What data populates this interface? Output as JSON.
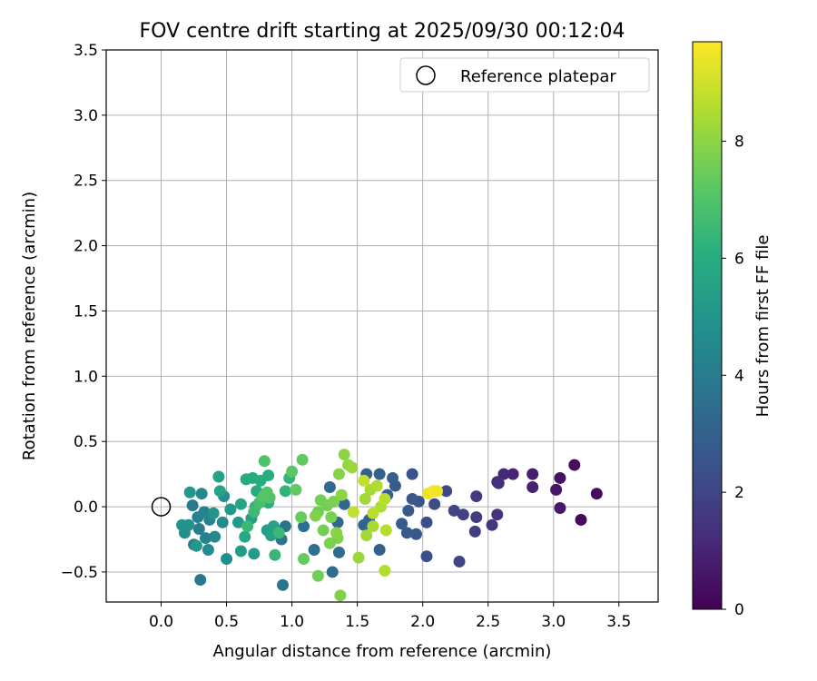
{
  "chart_data": {
    "type": "scatter",
    "title": "FOV centre drift starting at 2025/09/30 00:12:04",
    "xlabel": "Angular distance from reference (arcmin)",
    "ylabel": "Rotation from reference (arcmin)",
    "xlim": [
      -0.42,
      3.8
    ],
    "ylim": [
      -0.73,
      3.5
    ],
    "xticks": [
      0.0,
      0.5,
      1.0,
      1.5,
      2.0,
      2.5,
      3.0,
      3.5
    ],
    "xtick_labels": [
      "0.0",
      "0.5",
      "1.0",
      "1.5",
      "2.0",
      "2.5",
      "3.0",
      "3.5"
    ],
    "yticks": [
      -0.5,
      0.0,
      0.5,
      1.0,
      1.5,
      2.0,
      2.5,
      3.0,
      3.5
    ],
    "ytick_labels": [
      "−0.5",
      "0.0",
      "0.5",
      "1.0",
      "1.5",
      "2.0",
      "2.5",
      "3.0",
      "3.5"
    ],
    "grid": true,
    "legend": {
      "position": "upper-right",
      "entries": [
        "Reference platepar"
      ]
    },
    "reference_point": {
      "x": 0.0,
      "y": 0.0
    },
    "colorbar": {
      "label": "Hours from first FF file",
      "range": [
        0,
        9.7
      ],
      "ticks": [
        0,
        2,
        4,
        6,
        8
      ],
      "tick_labels": [
        "0",
        "2",
        "4",
        "6",
        "8"
      ],
      "colormap": "viridis"
    },
    "points": [
      {
        "x": 3.33,
        "y": 0.1,
        "t": 0.3
      },
      {
        "x": 3.16,
        "y": 0.32,
        "t": 0.3
      },
      {
        "x": 3.21,
        "y": -0.1,
        "t": 0.2
      },
      {
        "x": 3.05,
        "y": 0.22,
        "t": 0.5
      },
      {
        "x": 3.02,
        "y": 0.13,
        "t": 0.6
      },
      {
        "x": 3.05,
        "y": -0.01,
        "t": 0.7
      },
      {
        "x": 2.84,
        "y": 0.25,
        "t": 0.8
      },
      {
        "x": 2.84,
        "y": 0.15,
        "t": 0.9
      },
      {
        "x": 2.69,
        "y": 0.25,
        "t": 1.0
      },
      {
        "x": 2.62,
        "y": 0.25,
        "t": 1.1
      },
      {
        "x": 2.57,
        "y": 0.19,
        "t": 1.2
      },
      {
        "x": 2.58,
        "y": 0.18,
        "t": 1.3
      },
      {
        "x": 2.57,
        "y": -0.06,
        "t": 1.4
      },
      {
        "x": 2.53,
        "y": -0.14,
        "t": 1.5
      },
      {
        "x": 2.41,
        "y": 0.08,
        "t": 1.6
      },
      {
        "x": 2.41,
        "y": -0.08,
        "t": 1.7
      },
      {
        "x": 2.4,
        "y": -0.19,
        "t": 1.8
      },
      {
        "x": 2.31,
        "y": -0.06,
        "t": 1.9
      },
      {
        "x": 2.24,
        "y": -0.03,
        "t": 2.0
      },
      {
        "x": 2.28,
        "y": -0.42,
        "t": 2.0
      },
      {
        "x": 2.18,
        "y": 0.12,
        "t": 2.1
      },
      {
        "x": 2.09,
        "y": 0.02,
        "t": 2.2
      },
      {
        "x": 2.03,
        "y": -0.12,
        "t": 2.3
      },
      {
        "x": 2.03,
        "y": -0.38,
        "t": 2.4
      },
      {
        "x": 1.97,
        "y": 0.04,
        "t": 2.5
      },
      {
        "x": 1.92,
        "y": 0.25,
        "t": 2.5
      },
      {
        "x": 1.92,
        "y": 0.06,
        "t": 2.6
      },
      {
        "x": 1.95,
        "y": -0.21,
        "t": 2.6
      },
      {
        "x": 1.89,
        "y": -0.03,
        "t": 2.7
      },
      {
        "x": 1.88,
        "y": -0.2,
        "t": 2.7
      },
      {
        "x": 1.84,
        "y": -0.13,
        "t": 2.8
      },
      {
        "x": 1.79,
        "y": 0.16,
        "t": 2.8
      },
      {
        "x": 1.77,
        "y": 0.22,
        "t": 2.9
      },
      {
        "x": 1.73,
        "y": 0.09,
        "t": 2.9
      },
      {
        "x": 1.67,
        "y": 0.25,
        "t": 3.0
      },
      {
        "x": 1.67,
        "y": -0.33,
        "t": 3.0
      },
      {
        "x": 1.57,
        "y": 0.25,
        "t": 3.0
      },
      {
        "x": 1.59,
        "y": -0.1,
        "t": 3.1
      },
      {
        "x": 1.55,
        "y": -0.14,
        "t": 3.1
      },
      {
        "x": 1.4,
        "y": 0.02,
        "t": 3.2
      },
      {
        "x": 1.35,
        "y": -0.12,
        "t": 3.3
      },
      {
        "x": 1.29,
        "y": 0.15,
        "t": 3.3
      },
      {
        "x": 1.31,
        "y": -0.5,
        "t": 3.4
      },
      {
        "x": 1.36,
        "y": -0.35,
        "t": 3.4
      },
      {
        "x": 1.17,
        "y": -0.33,
        "t": 3.5
      },
      {
        "x": 1.09,
        "y": -0.15,
        "t": 3.6
      },
      {
        "x": 0.93,
        "y": -0.6,
        "t": 3.7
      },
      {
        "x": 0.95,
        "y": -0.15,
        "t": 3.7
      },
      {
        "x": 0.92,
        "y": -0.25,
        "t": 3.8
      },
      {
        "x": 0.3,
        "y": -0.56,
        "t": 3.8
      },
      {
        "x": 0.24,
        "y": 0.01,
        "t": 3.9
      },
      {
        "x": 0.25,
        "y": -0.29,
        "t": 4.0
      },
      {
        "x": 0.29,
        "y": -0.17,
        "t": 4.1
      },
      {
        "x": 0.28,
        "y": -0.08,
        "t": 4.2
      },
      {
        "x": 0.34,
        "y": -0.24,
        "t": 4.3
      },
      {
        "x": 0.33,
        "y": -0.04,
        "t": 4.3
      },
      {
        "x": 0.37,
        "y": -0.1,
        "t": 4.4
      },
      {
        "x": 0.41,
        "y": -0.23,
        "t": 4.5
      },
      {
        "x": 0.31,
        "y": 0.1,
        "t": 4.5
      },
      {
        "x": 0.47,
        "y": -0.12,
        "t": 4.6
      },
      {
        "x": 0.48,
        "y": 0.08,
        "t": 4.7
      },
      {
        "x": 0.36,
        "y": -0.33,
        "t": 4.7
      },
      {
        "x": 0.5,
        "y": -0.4,
        "t": 4.8
      },
      {
        "x": 0.18,
        "y": -0.2,
        "t": 4.8
      },
      {
        "x": 0.16,
        "y": -0.14,
        "t": 4.9
      },
      {
        "x": 0.21,
        "y": -0.14,
        "t": 4.9
      },
      {
        "x": 0.4,
        "y": -0.05,
        "t": 5.0
      },
      {
        "x": 0.22,
        "y": 0.11,
        "t": 5.1
      },
      {
        "x": 0.27,
        "y": -0.3,
        "t": 5.1
      },
      {
        "x": 0.53,
        "y": -0.02,
        "t": 5.2
      },
      {
        "x": 0.59,
        "y": -0.12,
        "t": 5.2
      },
      {
        "x": 0.61,
        "y": -0.34,
        "t": 5.3
      },
      {
        "x": 0.71,
        "y": -0.36,
        "t": 5.3
      },
      {
        "x": 0.69,
        "y": -0.09,
        "t": 5.4
      },
      {
        "x": 0.81,
        "y": -0.18,
        "t": 5.4
      },
      {
        "x": 0.84,
        "y": -0.22,
        "t": 5.5
      },
      {
        "x": 0.86,
        "y": -0.15,
        "t": 5.5
      },
      {
        "x": 0.44,
        "y": 0.23,
        "t": 5.6
      },
      {
        "x": 0.45,
        "y": 0.12,
        "t": 5.6
      },
      {
        "x": 0.61,
        "y": 0.02,
        "t": 5.7
      },
      {
        "x": 0.64,
        "y": -0.23,
        "t": 5.8
      },
      {
        "x": 0.65,
        "y": 0.21,
        "t": 5.8
      },
      {
        "x": 0.7,
        "y": 0.22,
        "t": 5.9
      },
      {
        "x": 0.73,
        "y": 0.12,
        "t": 5.9
      },
      {
        "x": 0.76,
        "y": 0.2,
        "t": 6.0
      },
      {
        "x": 0.82,
        "y": 0.24,
        "t": 6.0
      },
      {
        "x": 0.82,
        "y": 0.03,
        "t": 6.1
      },
      {
        "x": 0.72,
        "y": 0.0,
        "t": 6.2
      },
      {
        "x": 0.95,
        "y": 0.12,
        "t": 6.3
      },
      {
        "x": 0.98,
        "y": 0.22,
        "t": 6.3
      },
      {
        "x": 0.87,
        "y": -0.37,
        "t": 6.4
      },
      {
        "x": 0.9,
        "y": -0.2,
        "t": 6.5
      },
      {
        "x": 0.66,
        "y": -0.15,
        "t": 6.5
      },
      {
        "x": 0.71,
        "y": -0.04,
        "t": 6.6
      },
      {
        "x": 0.77,
        "y": 0.05,
        "t": 6.7
      },
      {
        "x": 0.75,
        "y": 0.03,
        "t": 6.8
      },
      {
        "x": 0.79,
        "y": 0.35,
        "t": 6.9
      },
      {
        "x": 0.81,
        "y": 0.11,
        "t": 7.0
      },
      {
        "x": 0.83,
        "y": 0.07,
        "t": 7.0
      },
      {
        "x": 0.78,
        "y": 0.08,
        "t": 7.1
      },
      {
        "x": 1.0,
        "y": 0.27,
        "t": 7.2
      },
      {
        "x": 1.03,
        "y": 0.13,
        "t": 7.3
      },
      {
        "x": 1.08,
        "y": 0.36,
        "t": 7.3
      },
      {
        "x": 1.09,
        "y": -0.4,
        "t": 7.4
      },
      {
        "x": 1.07,
        "y": -0.08,
        "t": 7.4
      },
      {
        "x": 1.2,
        "y": -0.04,
        "t": 7.5
      },
      {
        "x": 1.2,
        "y": -0.53,
        "t": 7.5
      },
      {
        "x": 1.22,
        "y": 0.05,
        "t": 7.6
      },
      {
        "x": 1.27,
        "y": 0.01,
        "t": 7.6
      },
      {
        "x": 1.3,
        "y": -0.08,
        "t": 7.7
      },
      {
        "x": 1.32,
        "y": 0.04,
        "t": 7.7
      },
      {
        "x": 1.35,
        "y": -0.24,
        "t": 7.8
      },
      {
        "x": 1.37,
        "y": -0.68,
        "t": 7.8
      },
      {
        "x": 1.36,
        "y": 0.25,
        "t": 7.9
      },
      {
        "x": 1.38,
        "y": 0.09,
        "t": 8.0
      },
      {
        "x": 1.4,
        "y": 0.4,
        "t": 8.0
      },
      {
        "x": 1.43,
        "y": 0.32,
        "t": 8.1
      },
      {
        "x": 1.46,
        "y": 0.3,
        "t": 8.2
      },
      {
        "x": 1.51,
        "y": -0.39,
        "t": 8.2
      },
      {
        "x": 1.56,
        "y": 0.06,
        "t": 8.3
      },
      {
        "x": 1.57,
        "y": -0.22,
        "t": 8.3
      },
      {
        "x": 1.6,
        "y": 0.13,
        "t": 8.4
      },
      {
        "x": 1.62,
        "y": -0.15,
        "t": 8.4
      },
      {
        "x": 1.65,
        "y": 0.16,
        "t": 8.5
      },
      {
        "x": 1.68,
        "y": 0.0,
        "t": 8.5
      },
      {
        "x": 1.71,
        "y": -0.49,
        "t": 8.6
      },
      {
        "x": 1.72,
        "y": -0.18,
        "t": 8.6
      },
      {
        "x": 1.71,
        "y": 0.06,
        "t": 8.7
      },
      {
        "x": 1.62,
        "y": -0.05,
        "t": 8.7
      },
      {
        "x": 1.55,
        "y": 0.2,
        "t": 8.8
      },
      {
        "x": 1.47,
        "y": -0.04,
        "t": 8.8
      },
      {
        "x": 1.18,
        "y": -0.07,
        "t": 7.8
      },
      {
        "x": 1.24,
        "y": -0.18,
        "t": 7.6
      },
      {
        "x": 1.29,
        "y": -0.28,
        "t": 7.7
      },
      {
        "x": 1.34,
        "y": -0.2,
        "t": 7.9
      },
      {
        "x": 2.04,
        "y": 0.1,
        "t": 9.4
      },
      {
        "x": 2.08,
        "y": 0.12,
        "t": 9.6
      },
      {
        "x": 2.11,
        "y": 0.12,
        "t": 9.5
      }
    ]
  }
}
